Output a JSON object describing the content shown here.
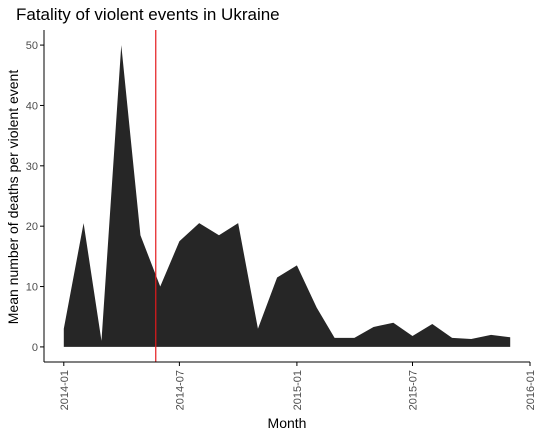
{
  "colors": {
    "area": "#262626",
    "vline": "#e31a1c",
    "axis": "#000000"
  },
  "chart_data": {
    "type": "area",
    "title": "Fatality of violent events in Ukraine",
    "xlabel": "Month",
    "ylabel": "Mean number of deaths per violent event",
    "x_ticks": [
      "2014-01",
      "2014-07",
      "2015-01",
      "2015-07",
      "2016-01"
    ],
    "y_ticks": [
      0,
      10,
      20,
      30,
      40,
      50
    ],
    "xlim": [
      "2013-12-01",
      "2016-01-01"
    ],
    "ylim": [
      -2.5,
      52.5
    ],
    "grid": false,
    "vline": {
      "x": "2014-05-25",
      "color": "#e31a1c"
    },
    "x": [
      "2014-01",
      "2014-02",
      "2014-03",
      "2014-04",
      "2014-05",
      "2014-06",
      "2014-07",
      "2014-08",
      "2014-09",
      "2014-10",
      "2014-11",
      "2014-12",
      "2015-01",
      "2015-02",
      "2015-03",
      "2015-04",
      "2015-05",
      "2015-06",
      "2015-07",
      "2015-08",
      "2015-09",
      "2015-10",
      "2015-11",
      "2015-12"
    ],
    "values": [
      3,
      20.5,
      1,
      50,
      18.5,
      10,
      17.5,
      20.5,
      18.5,
      20.5,
      3,
      11.5,
      13.5,
      6.5,
      1.5,
      1.5,
      3.3,
      4,
      1.8,
      3.8,
      1.5,
      1.3,
      2,
      1.6
    ]
  }
}
